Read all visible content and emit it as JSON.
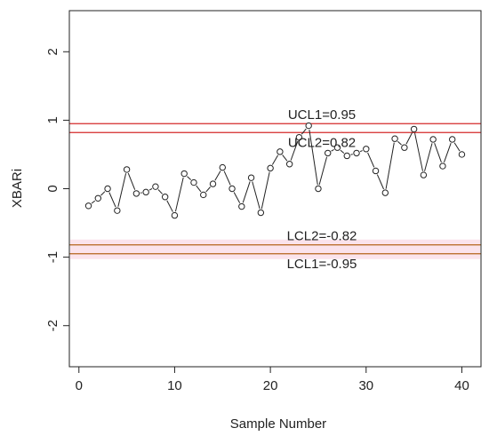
{
  "chart_data": {
    "type": "line",
    "xlabel": "Sample Number",
    "ylabel": "XBARi",
    "xlim": [
      -1,
      42
    ],
    "ylim": [
      -2.6,
      2.6
    ],
    "x_ticks": [
      0,
      10,
      20,
      30,
      40
    ],
    "y_ticks": [
      -2,
      -1,
      0,
      1,
      2
    ],
    "grid": false,
    "series": [
      {
        "x": [
          1,
          2,
          3,
          4,
          5,
          6,
          7,
          8,
          9,
          10,
          11,
          12,
          13,
          14,
          15,
          16,
          17,
          18,
          19,
          20,
          21,
          22,
          23,
          24,
          25,
          26,
          27,
          28,
          29,
          30,
          31,
          32,
          33,
          34,
          35,
          36,
          37,
          38,
          39,
          40
        ],
        "values": [
          -0.25,
          -0.14,
          0.0,
          -0.32,
          0.28,
          -0.07,
          -0.05,
          0.03,
          -0.12,
          -0.39,
          0.22,
          0.09,
          -0.09,
          0.07,
          0.31,
          0.0,
          -0.26,
          0.16,
          -0.35,
          0.3,
          0.54,
          0.36,
          0.75,
          0.92,
          0.0,
          0.52,
          0.6,
          0.48,
          0.52,
          0.58,
          0.26,
          -0.06,
          0.73,
          0.6,
          0.87,
          0.2,
          0.72,
          0.33,
          0.72,
          0.5
        ]
      }
    ],
    "control_lines": [
      {
        "label": "UCL1=0.95",
        "value": 0.95,
        "color": "#d42a2a",
        "label_pos": "above"
      },
      {
        "label": "UCL2=0.82",
        "value": 0.82,
        "color": "#d42a2a",
        "label_pos": "below"
      },
      {
        "label": "LCL2=-0.82",
        "value": -0.82,
        "color": "#b5651d",
        "label_pos": "above"
      },
      {
        "label": "LCL1=-0.95",
        "value": -0.95,
        "color": "#b5651d",
        "label_pos": "below"
      }
    ],
    "lcl_band_color": "#fbe3ec"
  }
}
